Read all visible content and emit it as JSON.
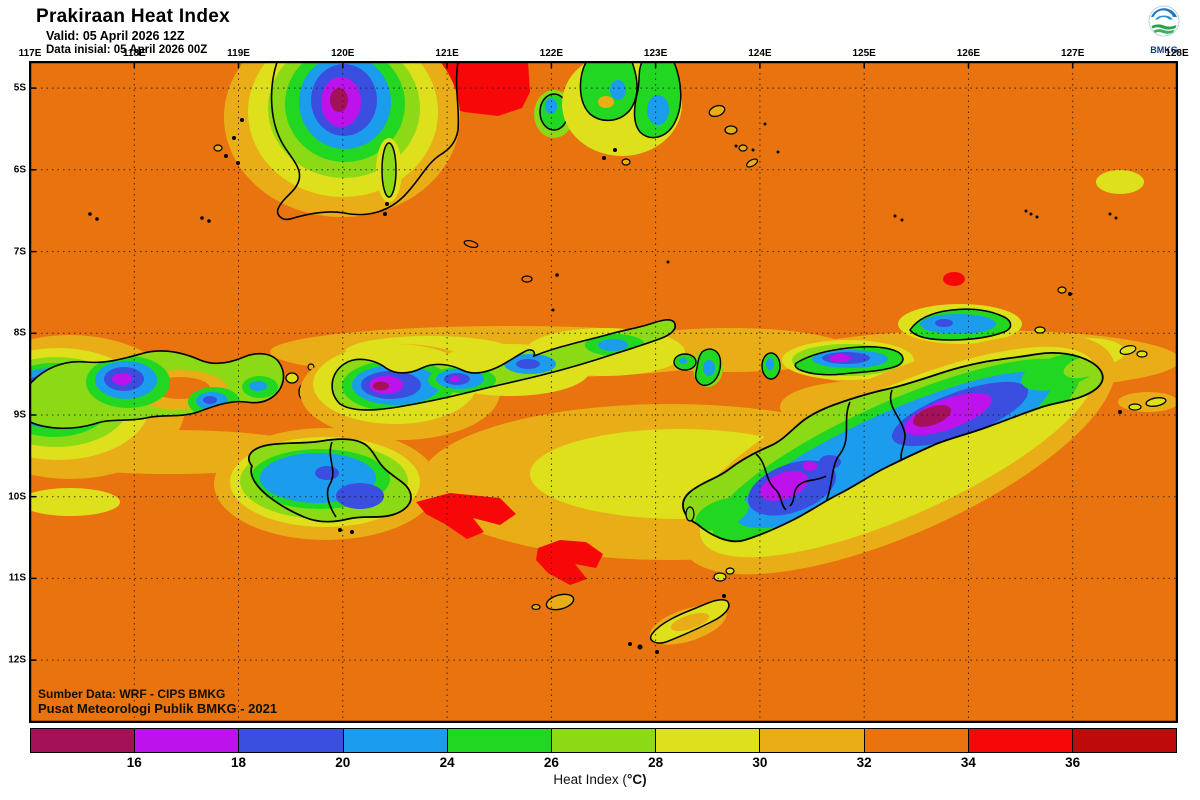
{
  "header": {
    "title": "Prakiraan Heat Index",
    "valid_line": "Valid: 05 April 2026 12Z",
    "init_line": "Data inisial: 05 April 2026 00Z",
    "logo_label": "BMKG"
  },
  "map": {
    "longitude_ticks": [
      "117E",
      "118E",
      "119E",
      "120E",
      "121E",
      "122E",
      "123E",
      "124E",
      "125E",
      "126E",
      "127E",
      "128E"
    ],
    "latitude_ticks": [
      "5S",
      "6S",
      "7S",
      "8S",
      "9S",
      "10S",
      "11S",
      "12S"
    ],
    "source_line1": "Sumber Data: WRF - CIPS BMKG",
    "source_line2": "Pusat Meteorologi Publik BMKG - 2021"
  },
  "colorbar": {
    "label_prefix": "Heat Index (",
    "label_unit": "°C",
    "label_suffix": ")",
    "boundary_labels": [
      "16",
      "18",
      "20",
      "24",
      "26",
      "28",
      "30",
      "32",
      "34",
      "36"
    ],
    "segments": [
      {
        "range": "<16",
        "color": "#A31258"
      },
      {
        "range": "16-18",
        "color": "#BE12ED"
      },
      {
        "range": "18-20",
        "color": "#3A4FE0"
      },
      {
        "range": "20-24",
        "color": "#1C9CEC"
      },
      {
        "range": "24-26",
        "color": "#21D721"
      },
      {
        "range": "26-28",
        "color": "#8CD916"
      },
      {
        "range": "28-30",
        "color": "#DEE01C"
      },
      {
        "range": "30-32",
        "color": "#E9AE17"
      },
      {
        "range": "32-34",
        "color": "#E8730F"
      },
      {
        "range": "34-36",
        "color": "#F70707"
      },
      {
        "range": ">36",
        "color": "#BE0A0A"
      }
    ]
  }
}
